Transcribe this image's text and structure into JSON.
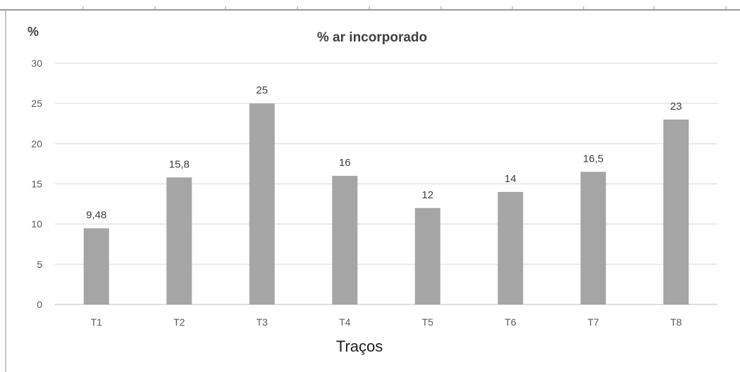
{
  "chart_data": {
    "type": "bar",
    "title": "% ar incorporado",
    "ylabel": "%",
    "xlabel": "Traços",
    "categories": [
      "T1",
      "T2",
      "T3",
      "T4",
      "T5",
      "T6",
      "T7",
      "T8"
    ],
    "values": [
      9.48,
      15.8,
      25,
      16,
      12,
      14,
      16.5,
      23
    ],
    "value_labels": [
      "9,48",
      "15,8",
      "25",
      "16",
      "12",
      "14",
      "16,5",
      "23"
    ],
    "ylim": [
      0,
      30
    ],
    "yticks": [
      0,
      5,
      10,
      15,
      20,
      25,
      30
    ],
    "grid": true,
    "colors": {
      "bar": "#a5a5a5",
      "grid": "#d9d9d9",
      "axis": "#bfbfbf"
    }
  }
}
